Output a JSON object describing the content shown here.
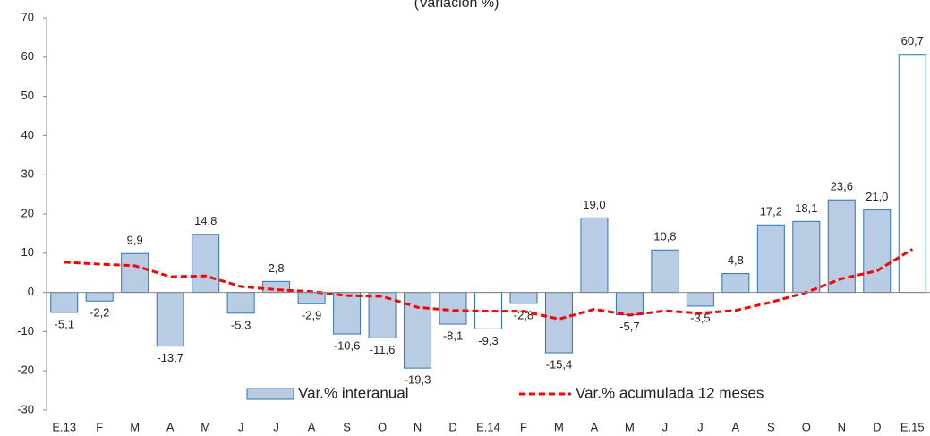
{
  "chart_data": {
    "type": "bar",
    "title": "(Variación %)",
    "categories": [
      "E.13",
      "F",
      "M",
      "A",
      "M",
      "J",
      "J",
      "A",
      "S",
      "O",
      "N",
      "D",
      "E.14",
      "F",
      "M",
      "A",
      "M",
      "J",
      "J",
      "A",
      "S",
      "O",
      "N",
      "D",
      "E.15"
    ],
    "series": [
      {
        "name": "Var.% interanual",
        "color": "#b8cce4",
        "edge_color": "#2e75b6",
        "colors": [
          "#b8cce4",
          "#b8cce4",
          "#b8cce4",
          "#b8cce4",
          "#b8cce4",
          "#b8cce4",
          "#b8cce4",
          "#b8cce4",
          "#b8cce4",
          "#b8cce4",
          "#b8cce4",
          "#b8cce4",
          "#ffffff",
          "#b8cce4",
          "#b8cce4",
          "#b8cce4",
          "#b8cce4",
          "#b8cce4",
          "#b8cce4",
          "#b8cce4",
          "#b8cce4",
          "#b8cce4",
          "#b8cce4",
          "#b8cce4",
          "#ffffff"
        ],
        "values": [
          -5.1,
          -2.2,
          9.9,
          -13.7,
          14.8,
          -5.3,
          2.8,
          -2.9,
          -10.6,
          -11.6,
          -19.3,
          -8.1,
          -9.3,
          -2.8,
          -15.4,
          19.0,
          -5.7,
          10.8,
          -3.5,
          4.8,
          17.2,
          18.1,
          23.6,
          21.0,
          60.7
        ],
        "value_labels": [
          "-5,1",
          "-2,2",
          "9,9",
          "-13,7",
          "14,8",
          "-5,3",
          "2,8",
          "-2,9",
          "-10,6",
          "-11,6",
          "-19,3",
          "-8,1",
          "-9,3",
          "-2,8",
          "-15,4",
          "19,0",
          "-5,7",
          "10,8",
          "-3,5",
          "4,8",
          "17,2",
          "18,1",
          "23,6",
          "21,0",
          "60,7"
        ]
      },
      {
        "name": "Var.% acumulada 12 meses",
        "type": "line",
        "color": "#ff0000",
        "values": [
          7.7,
          7.2,
          6.8,
          4.0,
          4.2,
          1.5,
          0.7,
          0.2,
          -0.8,
          -1.0,
          -3.8,
          -4.6,
          -4.8,
          -4.8,
          -6.8,
          -4.3,
          -5.8,
          -4.7,
          -5.3,
          -4.6,
          -2.5,
          0.0,
          3.5,
          5.5,
          11.0
        ]
      }
    ],
    "ylim": [
      -30,
      70
    ],
    "yticks": [
      -30,
      -20,
      -10,
      0,
      10,
      20,
      30,
      40,
      50,
      60,
      70
    ]
  }
}
